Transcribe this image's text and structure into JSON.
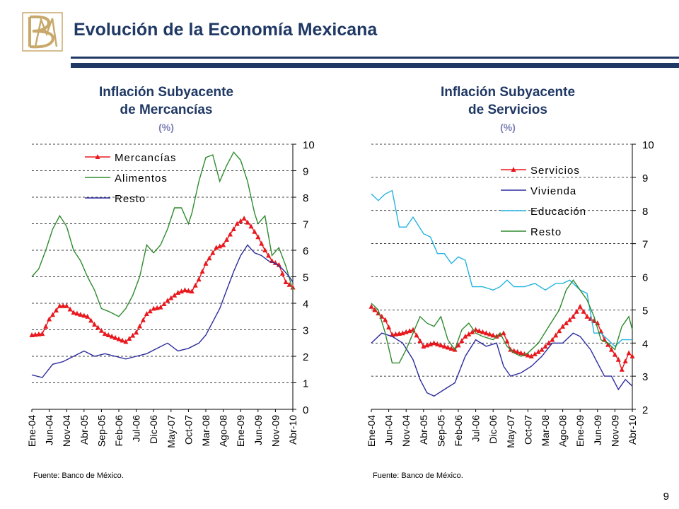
{
  "header": {
    "title": "Evolución de la Economía Mexicana",
    "logo_text": "BM"
  },
  "page_number": "9",
  "colors": {
    "brand_navy": "#1F3864",
    "logo_gold": "#C8A96B",
    "series_red": "#E8191E",
    "series_green": "#2E8B2E",
    "series_blue": "#2B2B9E",
    "series_cyan": "#22B3E0"
  },
  "chart_data": [
    {
      "type": "line",
      "title": "Inflación Subyacente de Mercancías",
      "title_lines": [
        "Inflación Subyacente",
        "de Mercancías"
      ],
      "unit": "(%)",
      "source": "Fuente: Banco de México.",
      "x_tick_labels": [
        "Ene-04",
        "Jun-04",
        "Nov-04",
        "Abr-05",
        "Sep-05",
        "Feb-06",
        "Jul-06",
        "Dic-06",
        "May-07",
        "Oct-07",
        "Mar-08",
        "Ago-08",
        "Ene-09",
        "Jun-09",
        "Nov-09",
        "Abr-10"
      ],
      "x_months": 76,
      "y_axis": "right",
      "ylim": [
        0,
        10
      ],
      "y_ticks": [
        0,
        1,
        2,
        3,
        4,
        5,
        6,
        7,
        8,
        9,
        10
      ],
      "grid": "dashed horizontal",
      "legend_position": "top-left",
      "series": [
        {
          "name": "Mercancías",
          "color": "#E8191E",
          "marker": "triangle",
          "points": [
            [
              0,
              2.8
            ],
            [
              3,
              2.85
            ],
            [
              5,
              3.4
            ],
            [
              8,
              3.9
            ],
            [
              10,
              3.9
            ],
            [
              12,
              3.65
            ],
            [
              16,
              3.5
            ],
            [
              18,
              3.2
            ],
            [
              21,
              2.85
            ],
            [
              24,
              2.7
            ],
            [
              27,
              2.55
            ],
            [
              30,
              2.9
            ],
            [
              33,
              3.6
            ],
            [
              35,
              3.8
            ],
            [
              37,
              3.85
            ],
            [
              39,
              4.1
            ],
            [
              42,
              4.4
            ],
            [
              44,
              4.5
            ],
            [
              46,
              4.45
            ],
            [
              48,
              4.9
            ],
            [
              50,
              5.5
            ],
            [
              53,
              6.1
            ],
            [
              55,
              6.2
            ],
            [
              57,
              6.6
            ],
            [
              59,
              7.0
            ],
            [
              61,
              7.2
            ],
            [
              63,
              6.9
            ],
            [
              65,
              6.5
            ],
            [
              67,
              6.0
            ],
            [
              69,
              5.6
            ],
            [
              71,
              5.45
            ],
            [
              73,
              4.8
            ],
            [
              75,
              4.6
            ]
          ]
        },
        {
          "name": "Alimentos",
          "color": "#2E8B2E",
          "marker": "none",
          "points": [
            [
              0,
              5.0
            ],
            [
              2,
              5.3
            ],
            [
              4,
              6.0
            ],
            [
              6,
              6.8
            ],
            [
              8,
              7.3
            ],
            [
              10,
              6.9
            ],
            [
              12,
              6.0
            ],
            [
              14,
              5.6
            ],
            [
              16,
              5.0
            ],
            [
              18,
              4.5
            ],
            [
              20,
              3.8
            ],
            [
              22,
              3.7
            ],
            [
              25,
              3.5
            ],
            [
              27,
              3.8
            ],
            [
              29,
              4.3
            ],
            [
              31,
              5.0
            ],
            [
              33,
              6.2
            ],
            [
              35,
              5.9
            ],
            [
              37,
              6.2
            ],
            [
              39,
              6.8
            ],
            [
              41,
              7.6
            ],
            [
              43,
              7.6
            ],
            [
              45,
              7.0
            ],
            [
              46,
              7.4
            ],
            [
              48,
              8.6
            ],
            [
              50,
              9.5
            ],
            [
              52,
              9.6
            ],
            [
              54,
              8.6
            ],
            [
              56,
              9.2
            ],
            [
              58,
              9.7
            ],
            [
              60,
              9.4
            ],
            [
              62,
              8.6
            ],
            [
              64,
              7.4
            ],
            [
              65,
              7.0
            ],
            [
              67,
              7.3
            ],
            [
              69,
              5.8
            ],
            [
              71,
              6.1
            ],
            [
              73,
              5.4
            ],
            [
              75,
              4.5
            ]
          ]
        },
        {
          "name": "Resto",
          "color": "#2B2B9E",
          "marker": "none",
          "points": [
            [
              0,
              1.3
            ],
            [
              3,
              1.2
            ],
            [
              6,
              1.7
            ],
            [
              9,
              1.8
            ],
            [
              12,
              2.0
            ],
            [
              15,
              2.2
            ],
            [
              18,
              2.0
            ],
            [
              21,
              2.1
            ],
            [
              24,
              2.0
            ],
            [
              27,
              1.9
            ],
            [
              30,
              2.0
            ],
            [
              33,
              2.1
            ],
            [
              36,
              2.3
            ],
            [
              39,
              2.5
            ],
            [
              42,
              2.2
            ],
            [
              45,
              2.3
            ],
            [
              48,
              2.5
            ],
            [
              50,
              2.8
            ],
            [
              52,
              3.3
            ],
            [
              54,
              3.8
            ],
            [
              56,
              4.5
            ],
            [
              58,
              5.2
            ],
            [
              60,
              5.8
            ],
            [
              62,
              6.2
            ],
            [
              64,
              5.9
            ],
            [
              66,
              5.8
            ],
            [
              68,
              5.6
            ],
            [
              70,
              5.5
            ],
            [
              72,
              5.3
            ],
            [
              74,
              5.0
            ],
            [
              75,
              4.8
            ]
          ]
        }
      ]
    },
    {
      "type": "line",
      "title": "Inflación Subyacente de Servicios",
      "title_lines": [
        "Inflación Subyacente",
        "de Servicios"
      ],
      "unit": "(%)",
      "source": "Fuente: Banco de México.",
      "x_tick_labels": [
        "Ene-04",
        "Jun-04",
        "Nov-04",
        "Abr-05",
        "Sep-05",
        "Feb-06",
        "Jul-06",
        "Dic-06",
        "May-07",
        "Oct-07",
        "Mar-08",
        "Ago-08",
        "Ene-09",
        "Jun-09",
        "Nov-09",
        "Abr-10"
      ],
      "x_months": 76,
      "y_axis": "right",
      "ylim": [
        2,
        10
      ],
      "y_ticks": [
        2,
        3,
        4,
        5,
        6,
        7,
        8,
        9,
        10
      ],
      "grid": "dashed horizontal",
      "legend_position": "top-left",
      "series": [
        {
          "name": "Servicios",
          "color": "#E8191E",
          "marker": "triangle",
          "points": [
            [
              0,
              5.1
            ],
            [
              2,
              4.9
            ],
            [
              4,
              4.7
            ],
            [
              6,
              4.25
            ],
            [
              9,
              4.3
            ],
            [
              12,
              4.4
            ],
            [
              15,
              3.9
            ],
            [
              18,
              4.0
            ],
            [
              21,
              3.9
            ],
            [
              24,
              3.8
            ],
            [
              27,
              4.2
            ],
            [
              30,
              4.4
            ],
            [
              33,
              4.3
            ],
            [
              36,
              4.2
            ],
            [
              38,
              4.3
            ],
            [
              40,
              3.8
            ],
            [
              43,
              3.7
            ],
            [
              46,
              3.6
            ],
            [
              49,
              3.8
            ],
            [
              52,
              4.1
            ],
            [
              55,
              4.5
            ],
            [
              58,
              4.8
            ],
            [
              60,
              5.1
            ],
            [
              62,
              4.8
            ],
            [
              65,
              4.6
            ],
            [
              67,
              4.1
            ],
            [
              69,
              3.8
            ],
            [
              71,
              3.5
            ],
            [
              72,
              3.2
            ],
            [
              74,
              3.7
            ],
            [
              75,
              3.6
            ]
          ]
        },
        {
          "name": "Vivienda",
          "color": "#2B2B9E",
          "marker": "none",
          "points": [
            [
              0,
              4.0
            ],
            [
              3,
              4.3
            ],
            [
              6,
              4.2
            ],
            [
              9,
              4.0
            ],
            [
              12,
              3.5
            ],
            [
              14,
              2.9
            ],
            [
              16,
              2.5
            ],
            [
              18,
              2.4
            ],
            [
              21,
              2.6
            ],
            [
              24,
              2.8
            ],
            [
              27,
              3.6
            ],
            [
              30,
              4.1
            ],
            [
              33,
              3.9
            ],
            [
              36,
              4.0
            ],
            [
              38,
              3.3
            ],
            [
              40,
              3.0
            ],
            [
              43,
              3.1
            ],
            [
              46,
              3.3
            ],
            [
              49,
              3.6
            ],
            [
              52,
              4.0
            ],
            [
              55,
              4.0
            ],
            [
              58,
              4.3
            ],
            [
              60,
              4.2
            ],
            [
              63,
              3.8
            ],
            [
              65,
              3.4
            ],
            [
              67,
              3.0
            ],
            [
              69,
              3.0
            ],
            [
              71,
              2.6
            ],
            [
              73,
              2.9
            ],
            [
              75,
              2.7
            ]
          ]
        },
        {
          "name": "Educación",
          "color": "#22B3E0",
          "marker": "none",
          "points": [
            [
              0,
              8.5
            ],
            [
              2,
              8.3
            ],
            [
              4,
              8.5
            ],
            [
              6,
              8.6
            ],
            [
              8,
              7.5
            ],
            [
              10,
              7.5
            ],
            [
              12,
              7.8
            ],
            [
              15,
              7.3
            ],
            [
              17,
              7.2
            ],
            [
              19,
              6.7
            ],
            [
              21,
              6.7
            ],
            [
              23,
              6.4
            ],
            [
              25,
              6.6
            ],
            [
              27,
              6.5
            ],
            [
              29,
              5.7
            ],
            [
              32,
              5.7
            ],
            [
              35,
              5.6
            ],
            [
              37,
              5.7
            ],
            [
              39,
              5.9
            ],
            [
              41,
              5.7
            ],
            [
              44,
              5.7
            ],
            [
              47,
              5.8
            ],
            [
              50,
              5.6
            ],
            [
              53,
              5.8
            ],
            [
              55,
              5.8
            ],
            [
              57,
              5.9
            ],
            [
              60,
              5.6
            ],
            [
              62,
              5.5
            ],
            [
              64,
              4.3
            ],
            [
              66,
              4.3
            ],
            [
              68,
              4.1
            ],
            [
              70,
              3.9
            ],
            [
              72,
              4.1
            ],
            [
              75,
              4.1
            ]
          ]
        },
        {
          "name": "Resto",
          "color": "#2E8B2E",
          "marker": "none",
          "points": [
            [
              0,
              5.2
            ],
            [
              2,
              5.0
            ],
            [
              4,
              4.3
            ],
            [
              6,
              3.4
            ],
            [
              8,
              3.4
            ],
            [
              10,
              3.8
            ],
            [
              12,
              4.3
            ],
            [
              14,
              4.8
            ],
            [
              16,
              4.6
            ],
            [
              18,
              4.5
            ],
            [
              20,
              4.8
            ],
            [
              22,
              4.1
            ],
            [
              24,
              3.8
            ],
            [
              26,
              4.4
            ],
            [
              28,
              4.6
            ],
            [
              30,
              4.3
            ],
            [
              32,
              4.2
            ],
            [
              35,
              4.1
            ],
            [
              37,
              4.3
            ],
            [
              39,
              3.9
            ],
            [
              41,
              3.7
            ],
            [
              43,
              3.6
            ],
            [
              45,
              3.7
            ],
            [
              48,
              4.0
            ],
            [
              51,
              4.5
            ],
            [
              54,
              5.0
            ],
            [
              56,
              5.6
            ],
            [
              58,
              5.9
            ],
            [
              60,
              5.6
            ],
            [
              62,
              5.3
            ],
            [
              64,
              4.8
            ],
            [
              66,
              4.1
            ],
            [
              68,
              4.0
            ],
            [
              70,
              3.8
            ],
            [
              72,
              4.5
            ],
            [
              74,
              4.8
            ],
            [
              75,
              4.4
            ]
          ]
        }
      ]
    }
  ]
}
